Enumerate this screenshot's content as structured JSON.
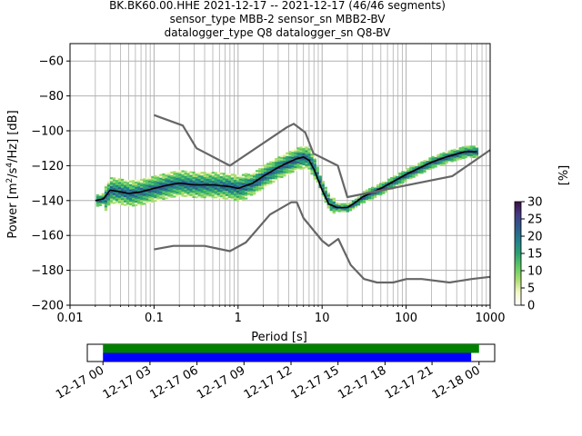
{
  "header": {
    "title_line1": "BK.BK60.00.HHE   2021-12-17 -- 2021-12-17  (46/46 segments)",
    "title_line2": "sensor_type MBB-2 sensor_sn MBB2-BV",
    "title_line3": "datalogger_type Q8 datalogger_sn Q8-BV"
  },
  "chart_data": [
    {
      "type": "heatmap",
      "description_kind": "probabilistic power spectral density",
      "xlabel": "Period [s]",
      "ylabel_parts": [
        "Power [m",
        "2",
        "/s",
        "4",
        "/Hz] [dB]"
      ],
      "x_scale": "log",
      "xlim": [
        0.01,
        1000
      ],
      "ylim": [
        -200,
        -50
      ],
      "x_ticks": [
        0.01,
        0.1,
        1,
        10,
        100,
        1000
      ],
      "x_tick_labels": [
        "0.01",
        "0.1",
        "1",
        "10",
        "100",
        "1000"
      ],
      "y_ticks": [
        -200,
        -180,
        -160,
        -140,
        -120,
        -100,
        -80,
        -60
      ],
      "y_tick_labels": [
        "−200",
        "−180",
        "−160",
        "−140",
        "−120",
        "−100",
        "−80",
        "−60"
      ],
      "grid": true,
      "series": [
        {
          "name": "mean",
          "color": "#000000",
          "x": [
            0.02,
            0.025,
            0.03,
            0.04,
            0.05,
            0.07,
            0.1,
            0.15,
            0.2,
            0.3,
            0.5,
            0.8,
            1.0,
            1.5,
            2.0,
            3.0,
            4.0,
            5.0,
            6.0,
            7.0,
            8.0,
            10.0,
            12.0,
            15.0,
            20.0,
            25.0,
            30.0,
            50.0,
            100.0,
            200.0,
            300.0,
            500.0,
            700.0
          ],
          "y": [
            -140,
            -139,
            -134,
            -135,
            -136,
            -135,
            -133,
            -131,
            -130,
            -131,
            -131,
            -132,
            -133,
            -130,
            -126,
            -121,
            -118,
            -116,
            -115,
            -117,
            -122,
            -134,
            -142,
            -144,
            -144,
            -141,
            -138,
            -133,
            -125,
            -118,
            -115,
            -112,
            -112
          ]
        },
        {
          "name": "high noise model",
          "color": "#666666",
          "x": [
            0.1,
            0.22,
            0.32,
            0.8,
            3.8,
            4.6,
            6.3,
            7.9,
            15.4,
            20.0,
            354.8,
            1000.0
          ],
          "y": [
            -91,
            -97,
            -110,
            -120,
            -98,
            -96,
            -101,
            -113,
            -120,
            -138,
            -126,
            -111
          ]
        },
        {
          "name": "low noise model",
          "color": "#666666",
          "x": [
            0.1,
            0.17,
            0.4,
            0.8,
            1.24,
            2.4,
            4.3,
            5.0,
            6.0,
            10.0,
            12.0,
            15.6,
            21.9,
            31.6,
            45.0,
            70.0,
            101.0,
            154.0,
            328.0,
            600.0,
            10000.0
          ],
          "y": [
            -168,
            -166,
            -166,
            -169,
            -164,
            -148,
            -141,
            -141,
            -150,
            -163,
            -166,
            -162,
            -177,
            -185,
            -187,
            -187,
            -185,
            -185,
            -187,
            -185,
            -178
          ]
        }
      ]
    },
    {
      "type": "colorbar",
      "label": "[%]",
      "range": [
        0,
        30
      ],
      "ticks": [
        0,
        5,
        10,
        15,
        20,
        25,
        30
      ],
      "tick_labels": [
        "0",
        "5",
        "10",
        "15",
        "20",
        "25",
        "30"
      ],
      "colormap": [
        "#ffffff",
        "#f4f7c6",
        "#a8dc6f",
        "#5cc863",
        "#2ca072",
        "#237f8e",
        "#2e5b8a",
        "#443a83",
        "#3b0f45"
      ]
    },
    {
      "type": "bar",
      "description_kind": "data coverage timeline",
      "x_tick_labels": [
        "12-17 00",
        "12-17 03",
        "12-17 06",
        "12-17 09",
        "12-17 12",
        "12-17 15",
        "12-17 18",
        "12-17 21",
        "12-18 00"
      ],
      "x_range_hours": [
        -1,
        25
      ],
      "series": [
        {
          "name": "coverage",
          "color": "#008000",
          "start_hour": 0.0,
          "end_hour": 24.0
        },
        {
          "name": "PSD segments",
          "color": "#0000ff",
          "start_hour": 0.0,
          "end_hour": 23.5
        }
      ]
    }
  ]
}
